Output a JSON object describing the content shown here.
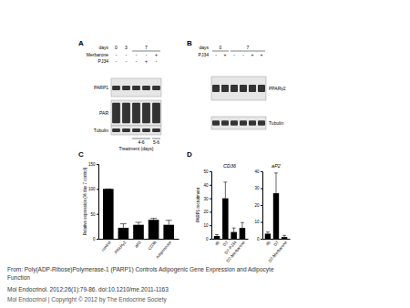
{
  "panel_labels": [
    "A",
    "B",
    "C",
    "D"
  ],
  "panels": {
    "A": {
      "days_label": "days",
      "days": [
        {
          "label": "0",
          "span": 1
        },
        {
          "label": "3",
          "span": 1
        },
        {
          "label": "7",
          "span": 3
        }
      ],
      "rows": [
        {
          "label": "Merbarone",
          "signs": [
            "-",
            "-",
            "-",
            "-",
            "+"
          ]
        },
        {
          "label": "PJ34",
          "signs": [
            "-",
            "-",
            "-",
            "+",
            "-"
          ]
        }
      ],
      "blots": [
        "PARP1",
        "PAR",
        "Tubulin"
      ],
      "treatment_label": "Treatment (days)",
      "treatment": [
        {
          "label": null,
          "span": 2
        },
        {
          "label": "4-6",
          "span": 2
        },
        {
          "label": "5-6",
          "span": 1
        }
      ]
    },
    "B": {
      "days_label": "days",
      "days": [
        {
          "label": "0",
          "span": 2
        },
        {
          "label": "7",
          "span": 4
        }
      ],
      "rows": [
        {
          "label": "PJ34",
          "signs": [
            "-",
            "+",
            "-",
            "-",
            "+",
            "+"
          ]
        }
      ],
      "blots": [
        "PPARγ2",
        "Tubulin"
      ]
    }
  },
  "chart_data": [
    {
      "type": "bar",
      "y_label": "Relative expression (% day 7 control)",
      "categories": [
        "control",
        "PPARγ2",
        "aP2",
        "CD36",
        "Adiponectin"
      ],
      "values": [
        100,
        22,
        28,
        38,
        28
      ],
      "errors": [
        0,
        8,
        5,
        3,
        9
      ],
      "color": "#000000",
      "ylim": [
        0,
        150
      ],
      "yticks": [
        0,
        50,
        100,
        150
      ]
    },
    {
      "type": "bar",
      "title": "CD36",
      "y_label": "PARP1 recruitment",
      "categories": [
        "d0",
        "D7",
        "D7-PJ34",
        "D7-Merbarone"
      ],
      "values": [
        2,
        30,
        5,
        8
      ],
      "errors": [
        1,
        12,
        3,
        4
      ],
      "color": "#000000",
      "ylim": [
        0,
        50
      ],
      "yticks": [
        0,
        10,
        20,
        30,
        40,
        50
      ]
    },
    {
      "type": "bar",
      "title": "aP2",
      "categories": [
        "d0",
        "D7",
        "D7-Merbarone"
      ],
      "values": [
        3,
        27,
        1
      ],
      "errors": [
        1,
        12,
        1
      ],
      "color": "#000000",
      "ylim": [
        0,
        40
      ],
      "yticks": [
        0,
        10,
        20,
        30,
        40
      ]
    }
  ],
  "citation": {
    "lines": [
      "From: Poly(ADP-Ribose)Polymerase-1 (PARP1) Controls Adipogenic Gene Expression and Adipocyte",
      "Function"
    ],
    "journal": "Mol Endocrinol. 2012;26(1):79-86. doi:10.1210/me.2011-1163",
    "copyright": "Mol Endocrinol | Copyright © 2012 by The Endocrine Society"
  }
}
